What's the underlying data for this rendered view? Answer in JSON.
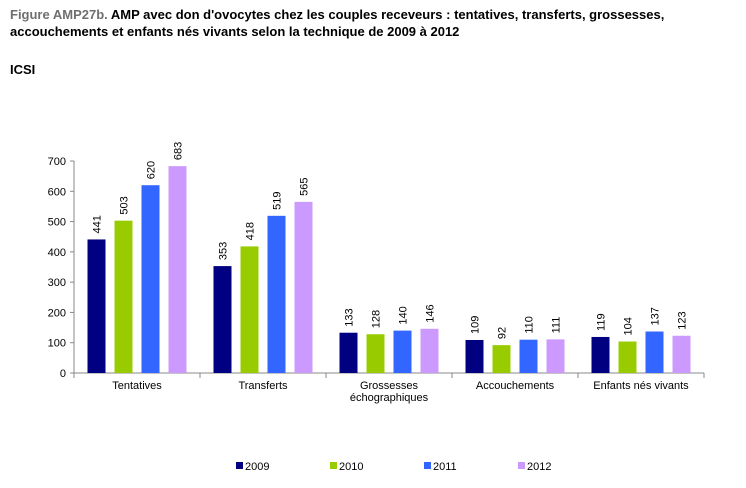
{
  "figure": {
    "prefix": "Figure AMP27b.",
    "title": "AMP avec don d'ovocytes chez les couples receveurs : tentatives, transferts, grossesses, accouchements et enfants nés vivants selon la technique de 2009 à 2012",
    "subtitle": "ICSI"
  },
  "chart_data": {
    "type": "bar",
    "title": "AMP avec don d'ovocytes chez les couples receveurs : tentatives, transferts, grossesses, accouchements et enfants nés vivants selon la technique de 2009 à 2012",
    "subtitle": "ICSI",
    "categories": [
      [
        "Tentatives"
      ],
      [
        "Transferts"
      ],
      [
        "Grossesses",
        "échographiques"
      ],
      [
        "Accouchements"
      ],
      [
        "Enfants nés vivants"
      ]
    ],
    "series": [
      {
        "name": "2009",
        "color": "#000080",
        "values": [
          441,
          353,
          133,
          109,
          119
        ]
      },
      {
        "name": "2010",
        "color": "#99cc00",
        "values": [
          503,
          418,
          128,
          92,
          104
        ]
      },
      {
        "name": "2011",
        "color": "#3366ff",
        "values": [
          620,
          519,
          140,
          110,
          137
        ]
      },
      {
        "name": "2012",
        "color": "#cc99ff",
        "values": [
          683,
          565,
          146,
          111,
          123
        ]
      }
    ],
    "ylim": [
      0,
      700
    ],
    "yticks": [
      0,
      100,
      200,
      300,
      400,
      500,
      600,
      700
    ],
    "grid": false,
    "legend": "bottom"
  }
}
